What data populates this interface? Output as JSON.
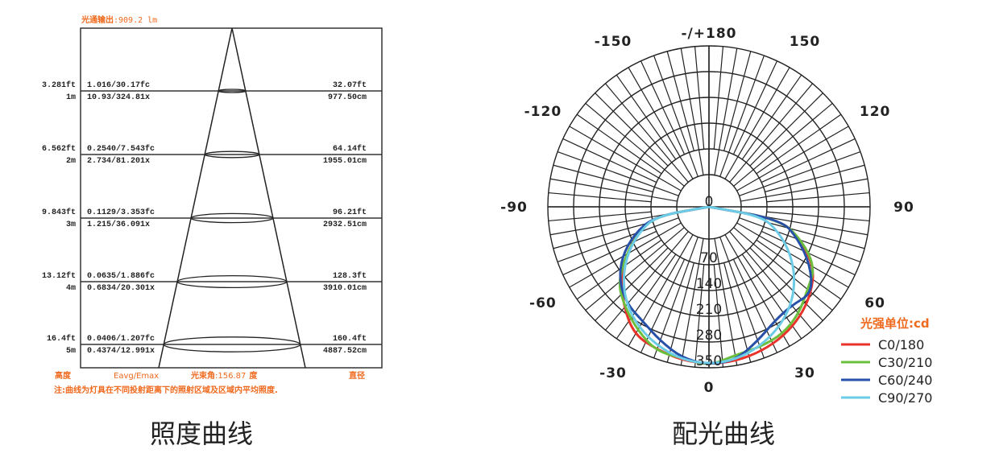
{
  "chart_data": [
    {
      "type": "diagram",
      "caption": "照度曲线",
      "title_label": "光通输出",
      "title_value": ":909.2 lm",
      "rows": [
        {
          "ft": "3.281ft",
          "m": "1m",
          "fc": "1.016/30.17fc",
          "lx": "10.93/324.81x",
          "dia_ft": "32.07ft",
          "dia_cm": "977.50cm"
        },
        {
          "ft": "6.562ft",
          "m": "2m",
          "fc": "0.2540/7.543fc",
          "lx": "2.734/81.201x",
          "dia_ft": "64.14ft",
          "dia_cm": "1955.01cm"
        },
        {
          "ft": "9.843ft",
          "m": "3m",
          "fc": "0.1129/3.353fc",
          "lx": "1.215/36.091x",
          "dia_ft": "96.21ft",
          "dia_cm": "2932.51cm"
        },
        {
          "ft": "13.12ft",
          "m": "4m",
          "fc": "0.0635/1.886fc",
          "lx": "0.6834/20.301x",
          "dia_ft": "128.3ft",
          "dia_cm": "3910.01cm"
        },
        {
          "ft": "16.4ft",
          "m": "5m",
          "fc": "0.0406/1.207fc",
          "lx": "0.4374/12.991x",
          "dia_ft": "160.4ft",
          "dia_cm": "4887.52cm"
        }
      ],
      "footer": {
        "height": "高度",
        "eavg": "Eavg/Emax",
        "beam_label": "光束角",
        "beam_value": ":156.87",
        "beam_unit": "度",
        "diameter": "直径"
      },
      "note": "注:曲线为灯具在不同投射距离下的照射区域及区域内平均照度."
    },
    {
      "type": "polar",
      "caption": "配光曲线",
      "unit_label": "光强单位:cd",
      "angle_labels": [
        {
          "angle": 180,
          "text": "-/+180"
        },
        {
          "angle": -150,
          "text": "-150"
        },
        {
          "angle": 150,
          "text": "150"
        },
        {
          "angle": -120,
          "text": "-120"
        },
        {
          "angle": 120,
          "text": "120"
        },
        {
          "angle": -90,
          "text": "-90"
        },
        {
          "angle": 90,
          "text": "90"
        },
        {
          "angle": -60,
          "text": "-60"
        },
        {
          "angle": 60,
          "text": "60"
        },
        {
          "angle": -30,
          "text": "-30"
        },
        {
          "angle": 30,
          "text": "30"
        },
        {
          "angle": 0,
          "text": "0"
        }
      ],
      "radial_ticks": [
        0,
        70,
        140,
        210,
        280,
        350
      ],
      "rmax": 350,
      "angles": [
        -90,
        -80,
        -70,
        -60,
        -50,
        -40,
        -30,
        -20,
        -10,
        0,
        10,
        20,
        30,
        40,
        50,
        60,
        70,
        80,
        90
      ],
      "series": [
        {
          "name": "C0/180",
          "color": "#e8322a",
          "values": [
            0,
            60,
            116,
            172,
            222,
            272,
            315,
            325,
            336,
            340,
            338,
            330,
            318,
            300,
            275,
            242,
            178,
            110,
            0
          ]
        },
        {
          "name": "C30/210",
          "color": "#6cbf3c",
          "values": [
            0,
            58,
            115,
            172,
            235,
            268,
            300,
            330,
            330,
            345,
            322,
            318,
            312,
            292,
            262,
            245,
            182,
            108,
            0
          ]
        },
        {
          "name": "C60/240",
          "color": "#2750a8",
          "values": [
            0,
            62,
            128,
            186,
            230,
            258,
            272,
            300,
            330,
            342,
            335,
            300,
            270,
            262,
            278,
            230,
            170,
            112,
            0
          ]
        },
        {
          "name": "C90/270",
          "color": "#6ccbe6",
          "values": [
            0,
            58,
            114,
            168,
            218,
            260,
            292,
            316,
            334,
            340,
            334,
            316,
            292,
            260,
            218,
            168,
            114,
            58,
            0
          ]
        }
      ]
    }
  ]
}
